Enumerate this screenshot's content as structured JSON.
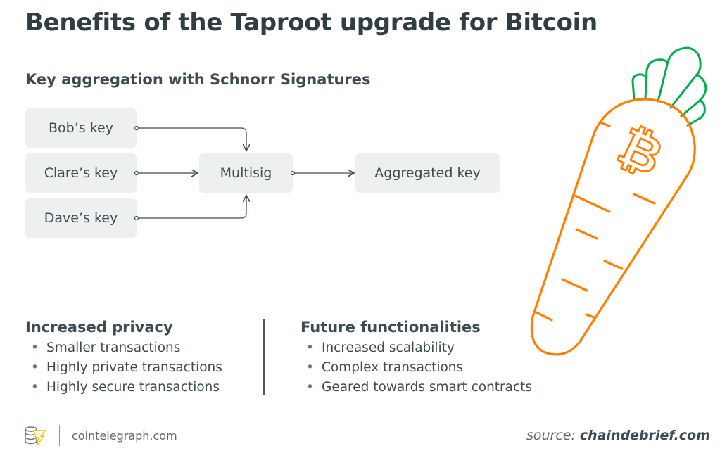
{
  "title": "Benefits of the Taproot upgrade for Bitcoin",
  "subtitle": "Key aggregation with Schnorr Signatures",
  "diagram": {
    "inputs": [
      "Bob’s key",
      "Clare’s key",
      "Dave’s key"
    ],
    "middle": "Multisig",
    "output": "Aggregated key"
  },
  "privacy": {
    "heading": "Increased privacy",
    "items": [
      "Smaller transactions",
      "Highly private transactions",
      "Highly secure transactions"
    ]
  },
  "future": {
    "heading": "Future functionalities",
    "items": [
      "Increased scalability",
      "Complex transactions",
      "Geared towards smart contracts"
    ]
  },
  "footer": {
    "site": "cointelegraph.com",
    "source_label": "source:",
    "source_value": "chaindebrief.com"
  },
  "colors": {
    "carrot": "#ff7f00",
    "leaves": "#00b050",
    "text": "#3d4c53",
    "box": "#eef0f0"
  },
  "icons": [
    "cointelegraph-logo-icon",
    "carrot-bitcoin-illustration"
  ]
}
